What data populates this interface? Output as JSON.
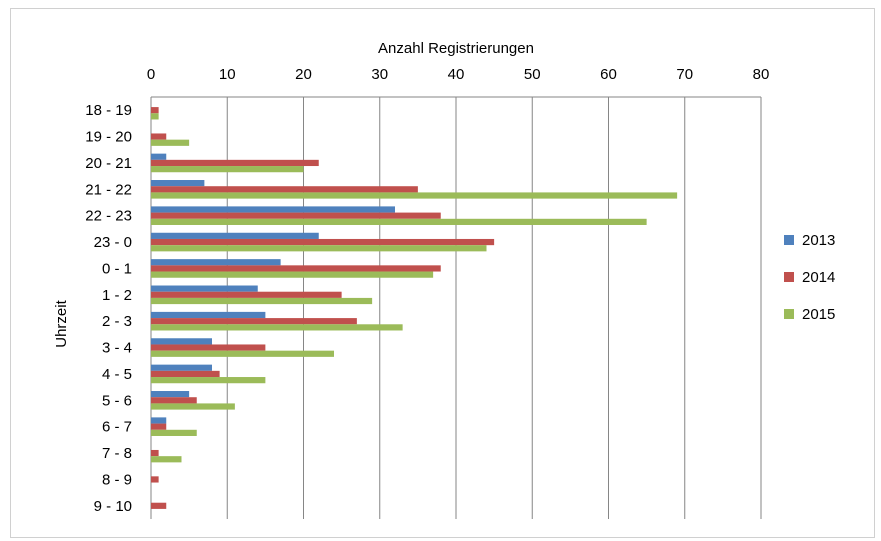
{
  "chart_data": {
    "type": "bar",
    "orientation": "horizontal",
    "title": "",
    "xlabel": "Anzahl Registrierungen",
    "ylabel": "Uhrzeit",
    "xlim": [
      0,
      80
    ],
    "xticks": [
      0,
      10,
      20,
      30,
      40,
      50,
      60,
      70,
      80
    ],
    "grid": "vertical",
    "legend_position": "right",
    "categories": [
      "18 - 19",
      "19 - 20",
      "20 - 21",
      "21 - 22",
      "22 - 23",
      "23 - 0",
      "0 - 1",
      "1 - 2",
      "2 - 3",
      "3 - 4",
      "4 - 5",
      "5 - 6",
      "6 - 7",
      "7 - 8",
      "8 - 9",
      "9 - 10"
    ],
    "series": [
      {
        "name": "2013",
        "color": "#4F81BD",
        "values": [
          0,
          0,
          2,
          7,
          32,
          22,
          17,
          14,
          15,
          8,
          8,
          5,
          2,
          0,
          0,
          0
        ]
      },
      {
        "name": "2014",
        "color": "#C0504D",
        "values": [
          1,
          2,
          22,
          35,
          38,
          45,
          38,
          25,
          27,
          15,
          9,
          6,
          2,
          1,
          1,
          2
        ]
      },
      {
        "name": "2015",
        "color": "#9BBB59",
        "values": [
          1,
          5,
          20,
          69,
          65,
          44,
          37,
          29,
          33,
          24,
          15,
          11,
          6,
          4,
          0,
          0
        ]
      }
    ]
  }
}
